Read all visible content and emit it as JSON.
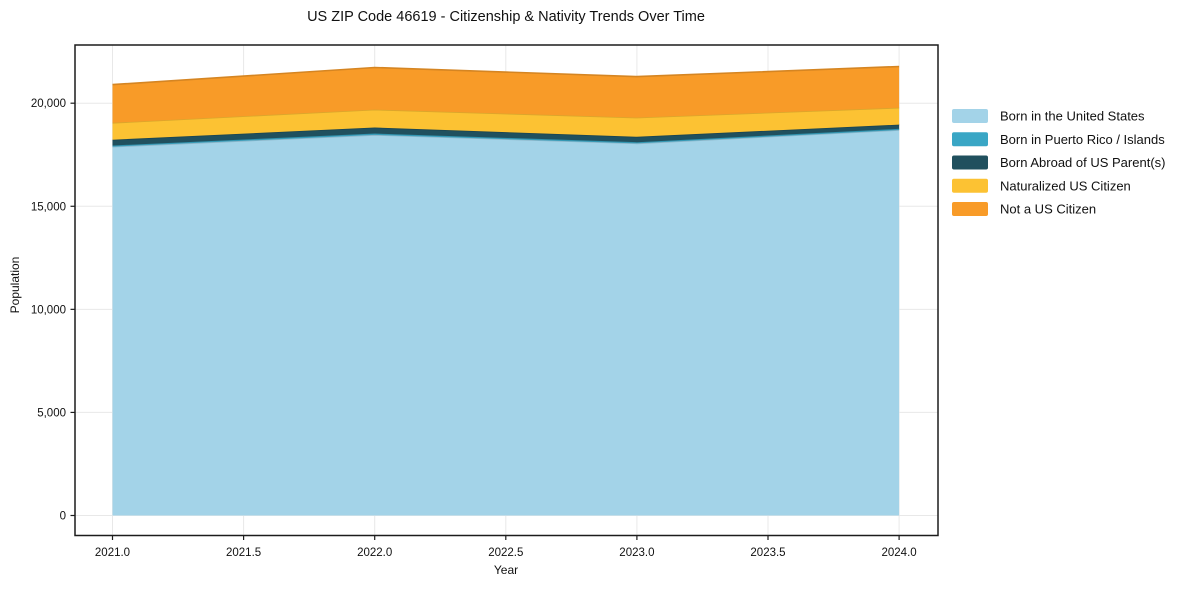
{
  "chart_data": {
    "type": "area",
    "stacked": true,
    "title": "US ZIP Code 46619 - Citizenship & Nativity Trends Over Time",
    "xlabel": "Year",
    "ylabel": "Population",
    "x": [
      2021,
      2022,
      2023,
      2024
    ],
    "series": [
      {
        "name": "Born in the United States",
        "color": "#a3d3e8",
        "values": [
          17890,
          18460,
          18050,
          18700
        ]
      },
      {
        "name": "Born in Puerto Rico / Islands",
        "color": "#39a6c5",
        "values": [
          60,
          70,
          60,
          60
        ]
      },
      {
        "name": "Born Abroad of US Parent(s)",
        "color": "#20505e",
        "values": [
          280,
          290,
          260,
          200
        ]
      },
      {
        "name": "Naturalized US Citizen",
        "color": "#fcc233",
        "values": [
          820,
          870,
          930,
          820
        ]
      },
      {
        "name": "Not a US Citizen",
        "color": "#f89b28",
        "values": [
          1850,
          2040,
          1990,
          2000
        ]
      }
    ],
    "totals": [
      20900,
      21730,
      21290,
      21780
    ],
    "xticks": [
      2021.0,
      2021.5,
      2022.0,
      2022.5,
      2023.0,
      2023.5,
      2024.0
    ],
    "xtick_labels": [
      "2021.0",
      "2021.5",
      "2022.0",
      "2022.5",
      "2023.0",
      "2023.5",
      "2024.0"
    ],
    "yticks": [
      0,
      5000,
      10000,
      15000,
      20000
    ],
    "ytick_labels": [
      "0",
      "5,000",
      "10,000",
      "15,000",
      "20,000"
    ],
    "xlim": [
      2021,
      2024
    ],
    "ylim": [
      0,
      22800
    ],
    "grid": true,
    "legend_position": "right-outside",
    "colors": {
      "text": "#111111",
      "spine": "#1c1c1c",
      "grid": "#e8e8e8",
      "background": "#ffffff"
    }
  }
}
